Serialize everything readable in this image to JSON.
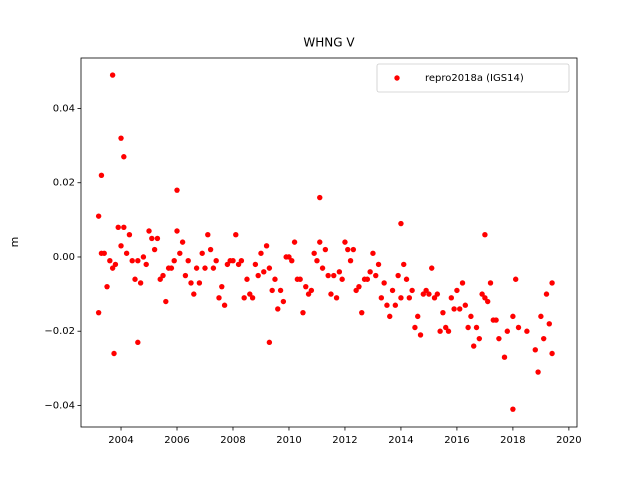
{
  "chart_data": {
    "type": "scatter",
    "title": "WHNG V",
    "y_label": "m",
    "xlim": [
      2002.57,
      2020.29
    ],
    "ylim": [
      -0.0458,
      0.0536
    ],
    "xticks": [
      2004,
      2006,
      2008,
      2010,
      2012,
      2014,
      2016,
      2018,
      2020
    ],
    "yticks": [
      {
        "value": -0.04,
        "label": "−0.04"
      },
      {
        "value": -0.02,
        "label": "−0.02"
      },
      {
        "value": 0,
        "label": "0.00"
      },
      0.02,
      0.04
    ],
    "legend": "upper right",
    "x": [
      2003.2,
      2003.3,
      2003.4,
      2003.5,
      2003.6,
      2003.7,
      2003.8,
      2003.9,
      2004.0,
      2004.1,
      2004.2,
      2004.3,
      2004.4,
      2004.5,
      2004.6,
      2004.7,
      2004.8,
      2004.9,
      2005.0,
      2005.1,
      2005.2,
      2005.3,
      2005.4,
      2005.5,
      2005.6,
      2005.7,
      2005.8,
      2005.9,
      2006.0,
      2006.1,
      2006.2,
      2006.3,
      2006.4,
      2006.5,
      2006.6,
      2006.7,
      2006.8,
      2006.9,
      2007.0,
      2007.1,
      2007.2,
      2007.3,
      2007.4,
      2007.5,
      2007.6,
      2007.7,
      2007.8,
      2007.9,
      2008.0,
      2008.1,
      2008.2,
      2008.3,
      2008.4,
      2008.5,
      2008.6,
      2008.7,
      2008.8,
      2008.9,
      2009.0,
      2009.1,
      2009.2,
      2009.3,
      2009.4,
      2009.5,
      2009.6,
      2009.7,
      2009.8,
      2009.9,
      2010.0,
      2010.1,
      2010.2,
      2010.3,
      2010.4,
      2010.5,
      2010.6,
      2010.7,
      2010.8,
      2010.9,
      2011.0,
      2011.1,
      2011.2,
      2011.3,
      2011.4,
      2011.5,
      2011.6,
      2011.7,
      2011.8,
      2011.9,
      2012.0,
      2012.1,
      2012.2,
      2012.3,
      2012.4,
      2012.5,
      2012.6,
      2012.7,
      2012.8,
      2012.9,
      2013.0,
      2013.1,
      2013.2,
      2013.3,
      2013.4,
      2013.5,
      2013.6,
      2013.7,
      2013.8,
      2013.9,
      2014.0,
      2014.1,
      2014.2,
      2014.3,
      2014.4,
      2014.5,
      2014.6,
      2014.7,
      2014.8,
      2014.9,
      2015.0,
      2015.1,
      2015.2,
      2015.3,
      2015.4,
      2015.5,
      2015.6,
      2015.7,
      2015.8,
      2015.9,
      2016.0,
      2016.1,
      2016.2,
      2016.3,
      2016.4,
      2016.5,
      2016.6,
      2016.7,
      2016.8,
      2016.9,
      2017.0,
      2017.1,
      2017.2,
      2017.3,
      2017.4,
      2017.5,
      2017.7,
      2017.8,
      2018.0,
      2018.1,
      2018.2,
      2018.5,
      2018.8,
      2018.9,
      2019.0,
      2019.1,
      2019.2,
      2019.3,
      2019.4,
      2019.4,
      2003.7,
      2003.75,
      2004.0,
      2004.1,
      2003.3,
      2018.0,
      2017.0,
      2014.0,
      2009.3,
      2004.6,
      2006.0,
      2011.1,
      2003.2
    ],
    "series": [
      {
        "name": "repro2018a (IGS14)",
        "color": "#ff0000",
        "values": [
          0.011,
          0.001,
          0.001,
          -0.008,
          -0.001,
          -0.003,
          -0.002,
          0.008,
          0.003,
          0.008,
          0.001,
          0.006,
          -0.001,
          -0.006,
          -0.001,
          -0.007,
          0,
          -0.002,
          0.007,
          0.005,
          0.002,
          0.005,
          -0.006,
          -0.005,
          -0.012,
          -0.003,
          -0.003,
          -0.001,
          0.007,
          0.001,
          0.004,
          -0.005,
          -0.001,
          -0.007,
          -0.01,
          -0.003,
          -0.007,
          0.001,
          -0.003,
          0.006,
          0.002,
          -0.003,
          -0.001,
          -0.011,
          -0.008,
          -0.013,
          -0.002,
          -0.001,
          -0.001,
          0.006,
          -0.002,
          -0.001,
          -0.011,
          -0.006,
          -0.01,
          -0.011,
          -0.002,
          -0.005,
          0.001,
          -0.004,
          0.003,
          -0.003,
          -0.009,
          -0.006,
          -0.014,
          -0.009,
          -0.012,
          0,
          0,
          -0.001,
          0.004,
          -0.006,
          -0.006,
          -0.015,
          -0.008,
          -0.01,
          -0.009,
          0.001,
          -0.001,
          0.004,
          -0.003,
          0.002,
          -0.005,
          -0.01,
          -0.005,
          -0.011,
          -0.004,
          -0.006,
          0.004,
          0.002,
          -0.001,
          0.002,
          -0.009,
          -0.008,
          -0.015,
          -0.006,
          -0.006,
          -0.004,
          0.001,
          -0.005,
          -0.002,
          -0.011,
          -0.007,
          -0.013,
          -0.016,
          -0.009,
          -0.013,
          -0.005,
          -0.011,
          -0.002,
          -0.006,
          -0.011,
          -0.009,
          -0.019,
          -0.016,
          -0.021,
          -0.01,
          -0.009,
          -0.01,
          -0.003,
          -0.011,
          -0.01,
          -0.02,
          -0.015,
          -0.019,
          -0.02,
          -0.011,
          -0.014,
          -0.009,
          -0.014,
          -0.007,
          -0.013,
          -0.019,
          -0.016,
          -0.024,
          -0.019,
          -0.022,
          -0.01,
          -0.011,
          -0.012,
          -0.007,
          -0.017,
          -0.017,
          -0.022,
          -0.027,
          -0.02,
          -0.016,
          -0.006,
          -0.019,
          -0.02,
          -0.025,
          -0.031,
          -0.016,
          -0.022,
          -0.01,
          -0.018,
          -0.026,
          -0.007,
          0.049,
          -0.026,
          0.032,
          0.027,
          0.022,
          -0.041,
          0.006,
          0.009,
          -0.023,
          -0.023,
          0.018,
          0.016,
          -0.015
        ]
      }
    ]
  }
}
